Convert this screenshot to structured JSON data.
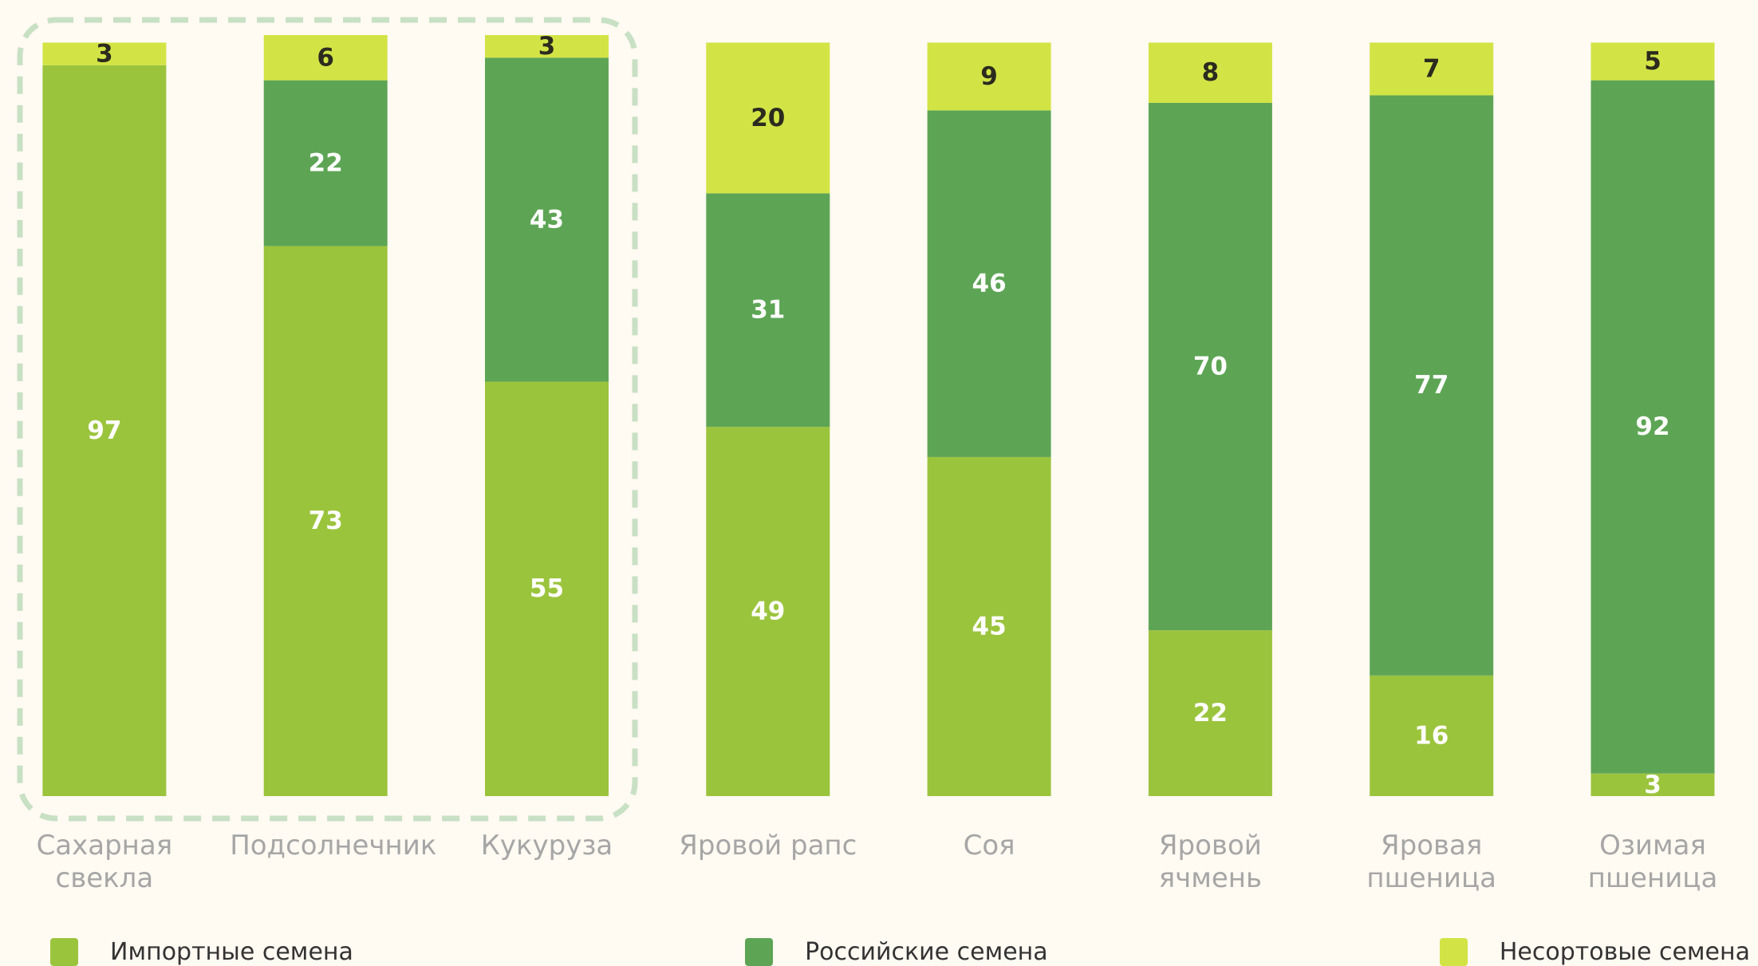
{
  "chart_data": {
    "type": "stacked_bar",
    "categories": [
      "Сахарная свекла",
      "Подсолнечник",
      "Кукуруза",
      "Яровой рапс",
      "Соя",
      "Яровой ячмень",
      "Яровая пшеница",
      "Озимая пшеница"
    ],
    "series": [
      {
        "name": "Импортные семена",
        "color": "#9bc43d",
        "values": [
          97,
          73,
          55,
          49,
          45,
          22,
          16,
          3
        ]
      },
      {
        "name": "Российские семена",
        "color": "#5da555",
        "values": [
          0,
          22,
          43,
          31,
          46,
          70,
          77,
          92
        ]
      },
      {
        "name": "Несортовые семена",
        "color": "#d2e445",
        "values": [
          3,
          6,
          3,
          20,
          9,
          8,
          7,
          5
        ]
      }
    ]
  }
}
